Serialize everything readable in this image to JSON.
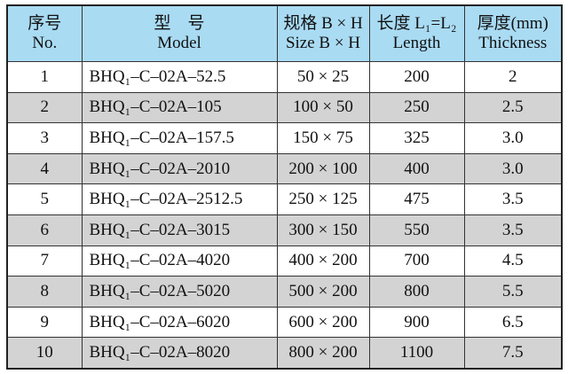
{
  "table": {
    "header": [
      [
        "序号",
        "No."
      ],
      [
        "型　号",
        "Model"
      ],
      [
        "规格 B × H",
        "Size B × H"
      ],
      [
        "长度 L₁=L₂",
        "Length"
      ],
      [
        "厚度(mm)",
        "Thickness"
      ]
    ],
    "rows": [
      [
        "1",
        "BHQ₁–C–02A–52.5",
        "50 × 25",
        "200",
        "2"
      ],
      [
        "2",
        "BHQ₁–C–02A–105",
        "100 × 50",
        "250",
        "2.5"
      ],
      [
        "3",
        "BHQ₁–C–02A–157.5",
        "150 × 75",
        "325",
        "3.0"
      ],
      [
        "4",
        "BHQ₁–C–02A–2010",
        "200 × 100",
        "400",
        "3.0"
      ],
      [
        "5",
        "BHQ₁–C–02A–2512.5",
        "250 × 125",
        "475",
        "3.5"
      ],
      [
        "6",
        "BHQ₁–C–02A–3015",
        "300 × 150",
        "550",
        "3.5"
      ],
      [
        "7",
        "BHQ₁–C–02A–4020",
        "400 × 200",
        "700",
        "4.5"
      ],
      [
        "8",
        "BHQ₁–C–02A–5020",
        "500 × 200",
        "800",
        "5.5"
      ],
      [
        "9",
        "BHQ₁–C–02A–6020",
        "600 × 200",
        "900",
        "6.5"
      ],
      [
        "10",
        "BHQ₁–C–02A–8020",
        "800 × 200",
        "1100",
        "7.5"
      ]
    ]
  }
}
